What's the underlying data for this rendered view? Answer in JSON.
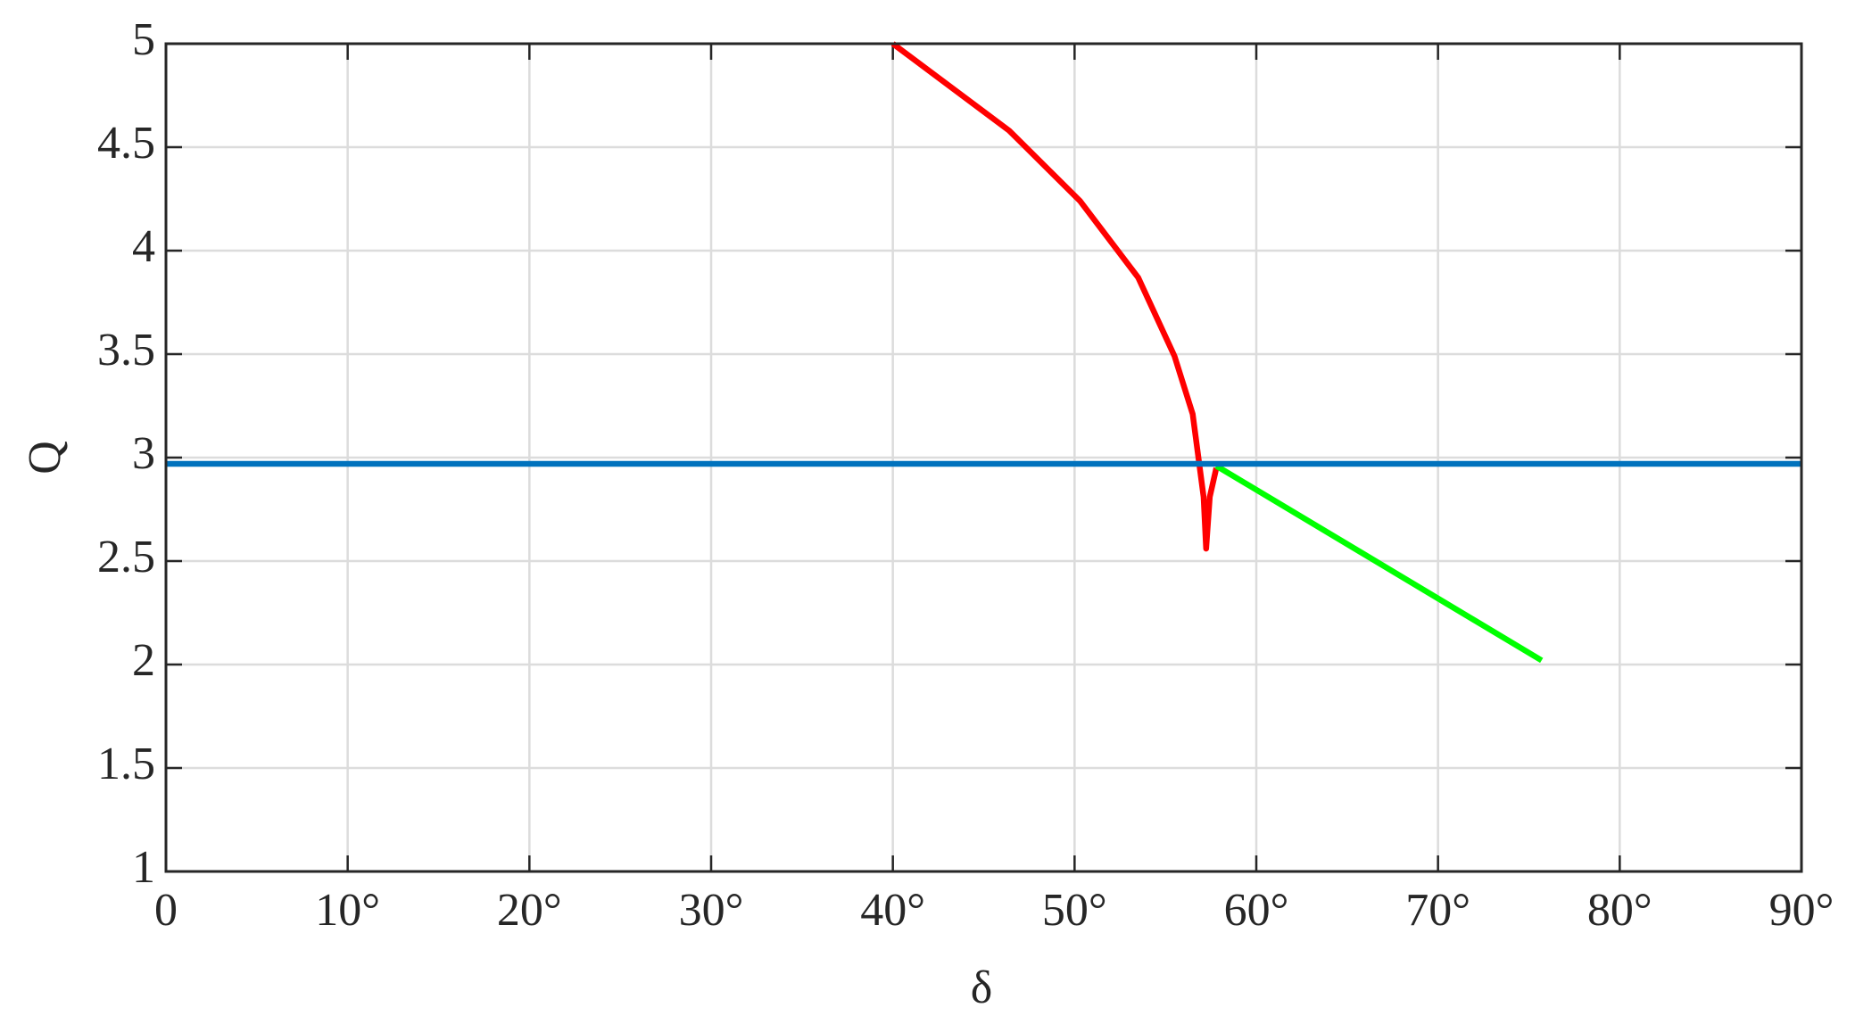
{
  "chart_data": {
    "type": "line",
    "x_label": "δ",
    "y_label": "Q",
    "xlim": [
      0,
      90
    ],
    "ylim": [
      1,
      5
    ],
    "xticks": [
      0,
      {
        "value": 10,
        "label": "10°"
      },
      {
        "value": 20,
        "label": "20°"
      },
      {
        "value": 30,
        "label": "30°"
      },
      {
        "value": 40,
        "label": "40°"
      },
      {
        "value": 50,
        "label": "50°"
      },
      {
        "value": 60,
        "label": "60°"
      },
      {
        "value": 70,
        "label": "70°"
      },
      {
        "value": 80,
        "label": "80°"
      },
      {
        "value": 90,
        "label": "90°"
      }
    ],
    "yticks": [
      1,
      1.5,
      2,
      2.5,
      3,
      3.5,
      4,
      4.5,
      5
    ],
    "grid": true,
    "series": [
      {
        "color": "#ff0000",
        "x": [
          40.0,
          46.4,
          50.3,
          53.5,
          55.5,
          56.5,
          56.8,
          57.1,
          57.24,
          57.44,
          57.8
        ],
        "values": [
          5,
          4.58,
          4.24,
          3.87,
          3.49,
          3.21,
          3.01,
          2.81,
          2.56,
          2.81,
          2.95
        ]
      },
      {
        "color": "#00ff00",
        "x": [
          57.8,
          75.7
        ],
        "values": [
          2.96,
          2.02
        ]
      },
      {
        "color": "#0072bd",
        "x": [
          0,
          90
        ],
        "values": [
          2.97,
          2.97
        ]
      }
    ]
  }
}
